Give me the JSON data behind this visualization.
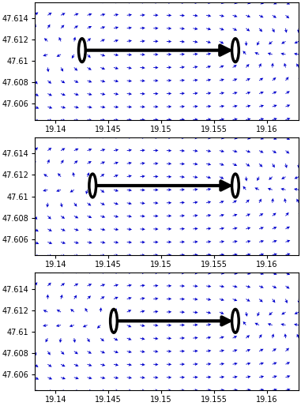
{
  "xlim": [
    19.138,
    19.163
  ],
  "ylim": [
    47.6045,
    47.6155
  ],
  "xticks": [
    19.14,
    19.145,
    19.15,
    19.155,
    19.16
  ],
  "yticks": [
    47.606,
    47.608,
    47.61,
    47.612,
    47.614
  ],
  "panels": [
    {
      "src_x": 19.1425,
      "src_y": 47.611,
      "dst_x": 19.157,
      "dst_y": 47.611,
      "arrow_lw": 3.0,
      "arrow_ms": 22
    },
    {
      "src_x": 19.1435,
      "src_y": 47.611,
      "dst_x": 19.157,
      "dst_y": 47.611,
      "arrow_lw": 3.0,
      "arrow_ms": 20
    },
    {
      "src_x": 19.1455,
      "src_y": 47.611,
      "dst_x": 19.157,
      "dst_y": 47.611,
      "arrow_lw": 3.0,
      "arrow_ms": 18
    }
  ],
  "vector_color": "#0000cc",
  "background_color": "#ffffff",
  "nx": 21,
  "ny": 10,
  "figsize": [
    3.81,
    5.14
  ],
  "dpi": 100
}
